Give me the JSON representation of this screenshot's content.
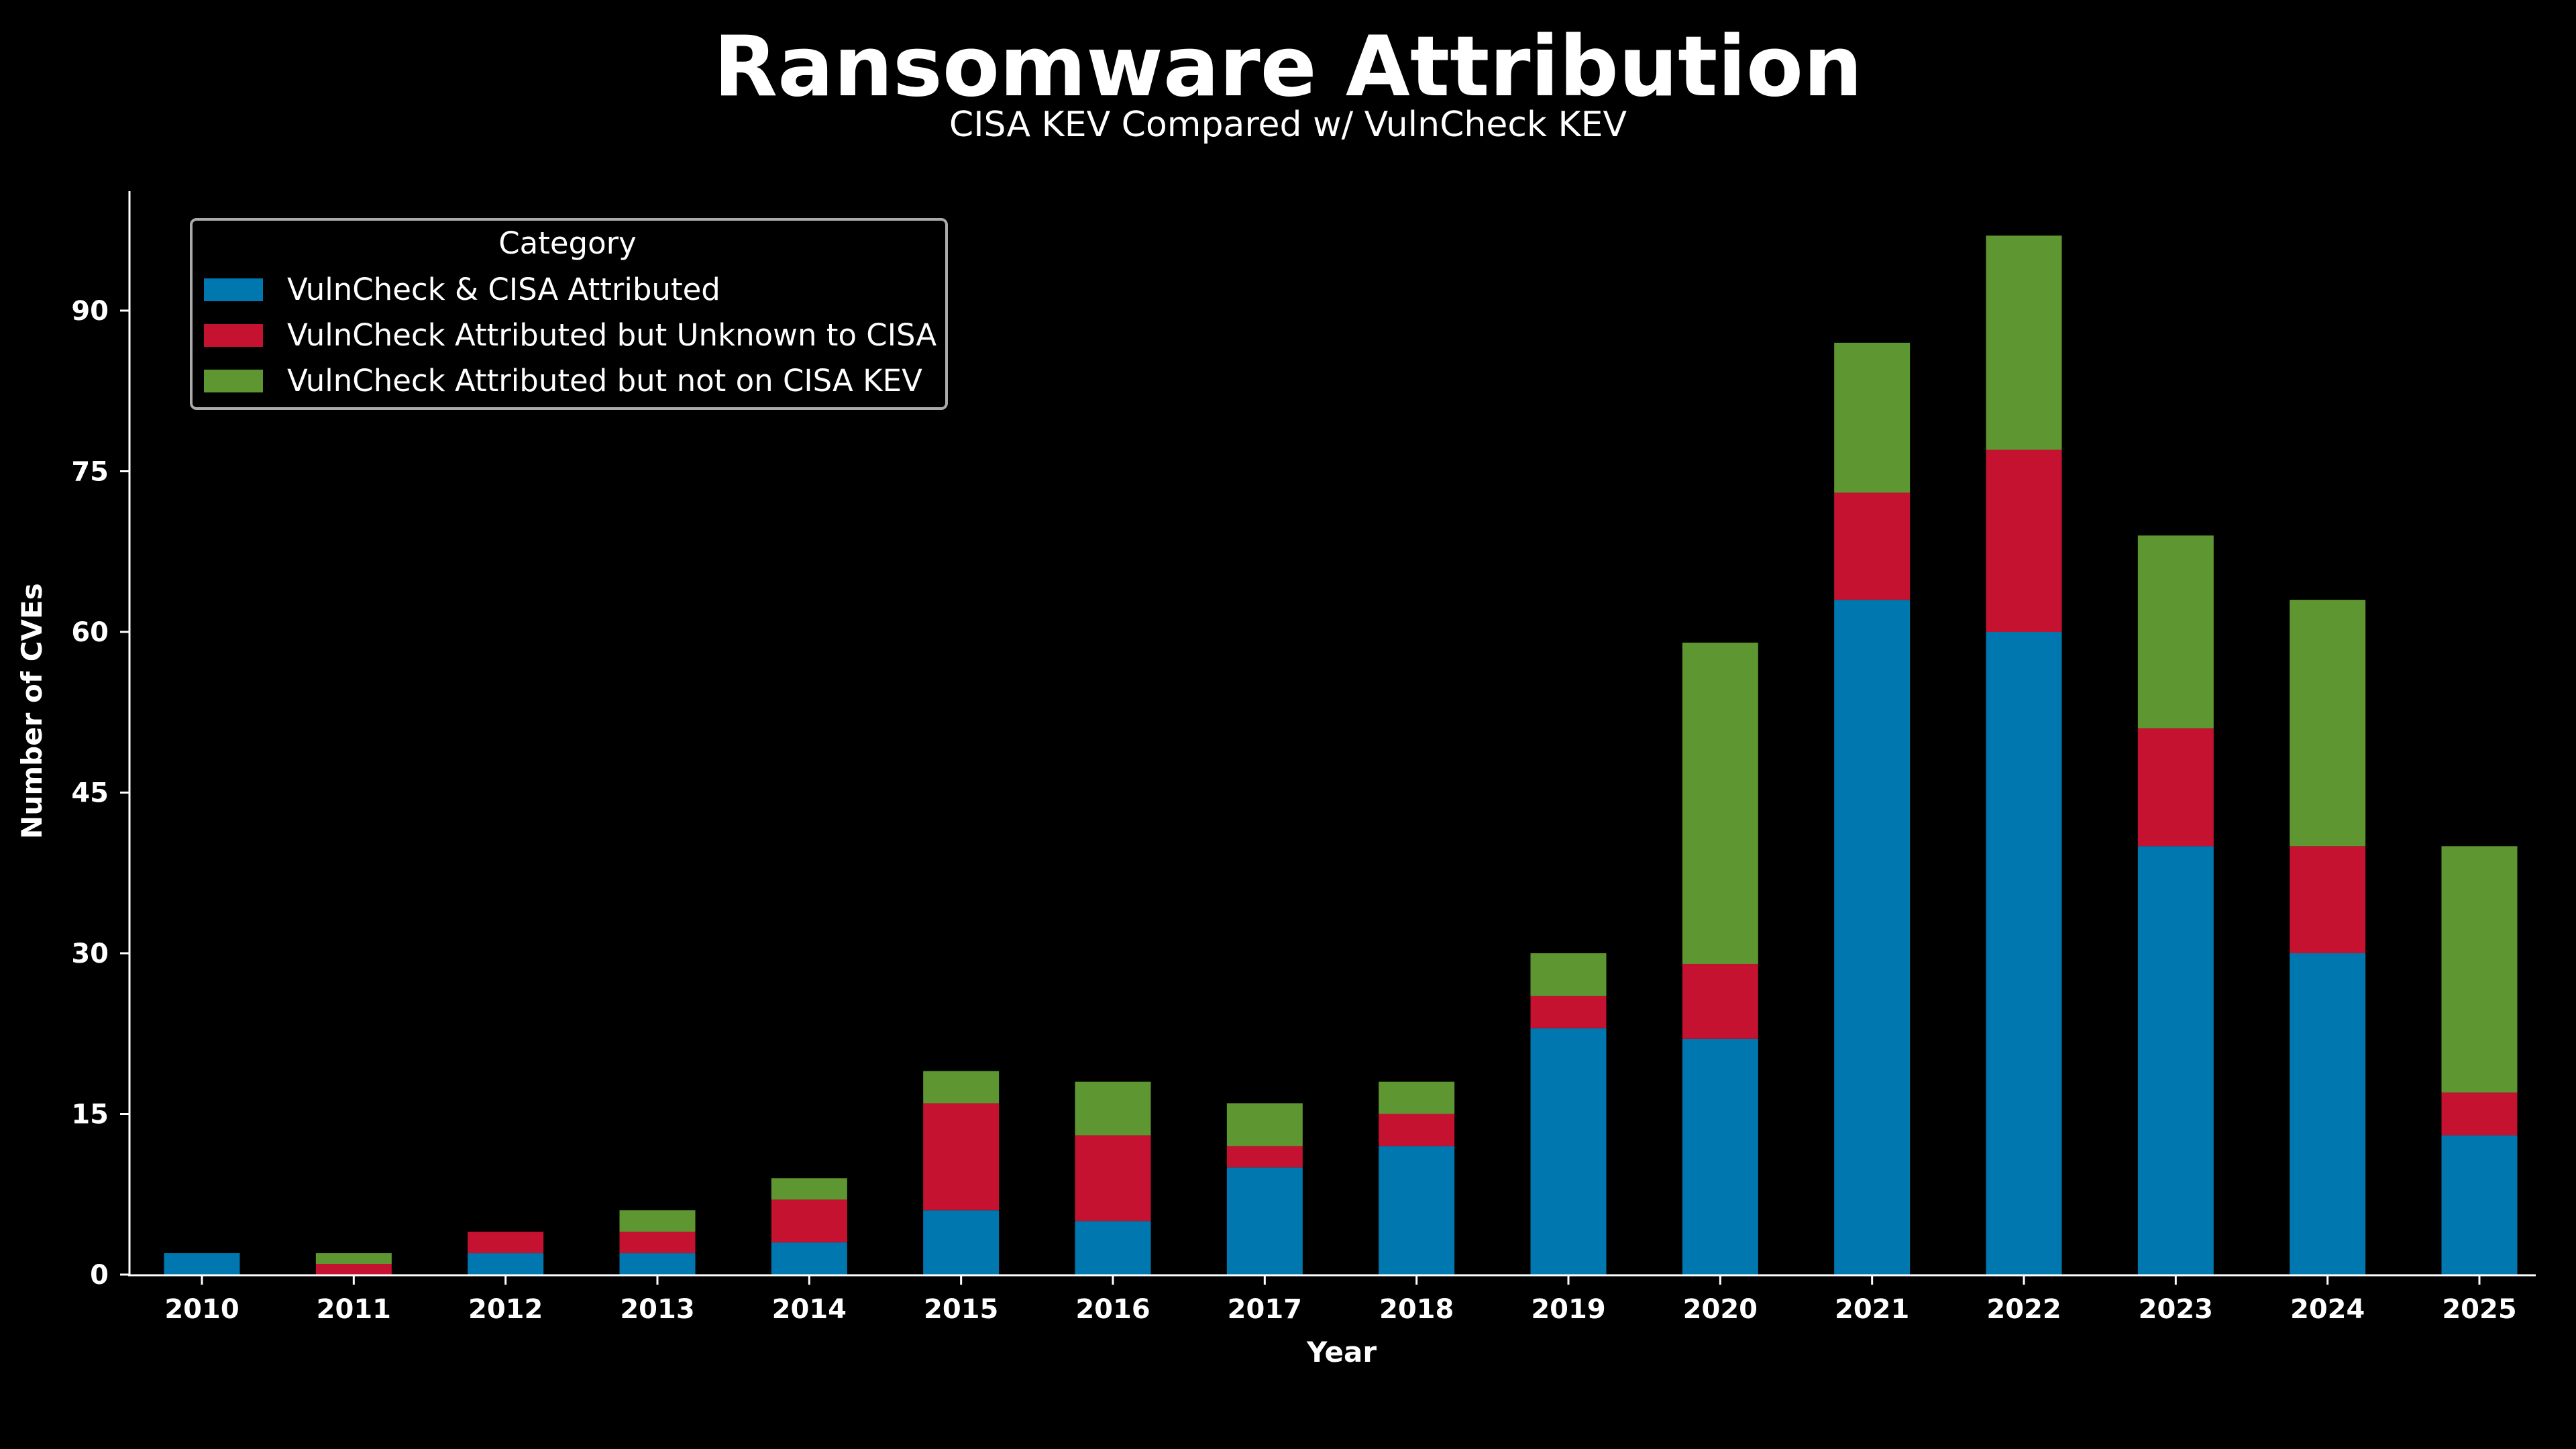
{
  "chart_data": {
    "type": "bar",
    "stacked": true,
    "title": "Ransomware Attribution",
    "subtitle": "CISA KEV Compared w/ VulnCheck KEV",
    "xlabel": "Year",
    "ylabel": "Number of CVEs",
    "categories": [
      "2010",
      "2011",
      "2012",
      "2013",
      "2014",
      "2015",
      "2016",
      "2017",
      "2018",
      "2019",
      "2020",
      "2021",
      "2022",
      "2023",
      "2024",
      "2025"
    ],
    "yticks": [
      "0",
      "15",
      "30",
      "45",
      "60",
      "75",
      "90"
    ],
    "ylim": [
      0,
      101
    ],
    "grid": false,
    "legend": {
      "title": "Category",
      "placement": "top-left"
    },
    "series": [
      {
        "name": "VulnCheck & CISA Attributed",
        "color": "#0077ae",
        "values": [
          2,
          0,
          2,
          2,
          3,
          6,
          5,
          10,
          12,
          23,
          22,
          63,
          60,
          40,
          30,
          13
        ]
      },
      {
        "name": "VulnCheck Attributed but Unknown to CISA",
        "color": "#c41230",
        "values": [
          0,
          1,
          2,
          2,
          4,
          10,
          8,
          2,
          3,
          3,
          7,
          10,
          17,
          11,
          10,
          4
        ]
      },
      {
        "name": "VulnCheck Attributed but not on CISA KEV",
        "color": "#5e9732",
        "values": [
          0,
          1,
          0,
          2,
          2,
          3,
          5,
          4,
          3,
          4,
          30,
          14,
          20,
          18,
          23,
          23
        ]
      }
    ]
  }
}
